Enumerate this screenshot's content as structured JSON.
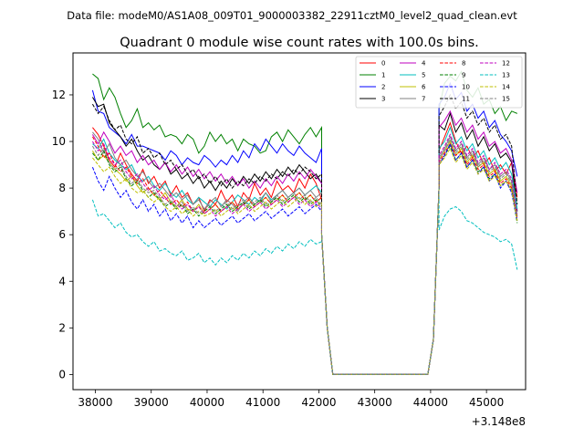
{
  "suptitle": "Data file: modeM0/AS1A08_009T01_9000003382_22911cztM0_level2_quad_clean.evt",
  "chart_data": {
    "type": "line",
    "title": "Quadrant 0 module wise count rates with 100.0s bins.",
    "xlabel": "",
    "ylabel": "",
    "offset_text": "+3.148e8",
    "xlim": [
      37600,
      45700
    ],
    "ylim": [
      -0.65,
      13.8
    ],
    "xticks": [
      38000,
      39000,
      40000,
      41000,
      42000,
      43000,
      44000,
      45000
    ],
    "xtick_labels": [
      "38000",
      "39000",
      "40000",
      "41000",
      "42000",
      "43000",
      "44000",
      "45000"
    ],
    "yticks": [
      0,
      2,
      4,
      6,
      8,
      10,
      12
    ],
    "ytick_labels": [
      "0",
      "2",
      "4",
      "6",
      "8",
      "10",
      "12"
    ],
    "legend_position": "upper right",
    "x_segments": {
      "seg1": {
        "start": 37950,
        "step": 100,
        "count": 42
      },
      "gap": {
        "x": [
          42050,
          42150,
          42250,
          42350,
          42450,
          42550,
          42650,
          42750,
          42850,
          42950,
          43050,
          43150,
          43250,
          43350,
          43450,
          43550,
          43650,
          43750,
          43850,
          43950,
          44050,
          44150
        ],
        "y": [
          6,
          2,
          0,
          0,
          0,
          0,
          0,
          0,
          0,
          0,
          0,
          0,
          0,
          0,
          0,
          0,
          0,
          0,
          0,
          0,
          1.5,
          8
        ]
      },
      "seg2": {
        "start": 44150,
        "step": 100,
        "count": 15
      }
    },
    "series": [
      {
        "name": "0",
        "color": "#ff0000",
        "dash": "solid",
        "seg1": [
          10.6,
          10.3,
          9.8,
          9.2,
          8.9,
          9.5,
          9.0,
          8.6,
          8.3,
          8.8,
          8.2,
          8.5,
          8.0,
          8.3,
          7.7,
          8.1,
          7.6,
          7.8,
          7.3,
          7.6,
          7.0,
          7.5,
          7.3,
          7.9,
          7.4,
          7.7,
          7.2,
          7.8,
          7.5,
          8.2,
          7.7,
          8.0,
          7.6,
          8.3,
          7.9,
          8.1,
          7.8,
          8.4,
          8.0,
          8.6,
          8.2,
          7.5
        ],
        "seg2": [
          9.6,
          10.2,
          10.8,
          10.0,
          9.5,
          9.8,
          9.3,
          9.6,
          9.0,
          9.3,
          8.7,
          9.0,
          8.6,
          9.1,
          7.6
        ]
      },
      {
        "name": "1",
        "color": "#008000",
        "dash": "solid",
        "seg1": [
          12.9,
          12.7,
          11.8,
          12.3,
          11.9,
          11.2,
          10.6,
          10.9,
          11.4,
          10.6,
          10.8,
          10.5,
          10.7,
          10.2,
          10.3,
          10.2,
          9.9,
          10.3,
          10.1,
          9.5,
          9.8,
          10.4,
          10.0,
          10.3,
          9.9,
          10.1,
          9.6,
          10.1,
          9.9,
          9.8,
          9.5,
          9.6,
          10.2,
          10.4,
          10.0,
          10.5,
          10.2,
          9.9,
          10.3,
          10.6,
          10.2,
          10.6
        ],
        "seg2": [
          11.4,
          12.5,
          12.8,
          12.6,
          13.0,
          12.2,
          11.9,
          12.3,
          11.6,
          11.8,
          11.2,
          11.5,
          10.9,
          11.3,
          11.2
        ]
      },
      {
        "name": "2",
        "color": "#0000ff",
        "dash": "solid",
        "seg1": [
          12.2,
          11.3,
          11.2,
          10.6,
          10.4,
          10.2,
          9.9,
          10.3,
          9.8,
          9.8,
          9.7,
          9.6,
          9.5,
          9.2,
          9.6,
          9.4,
          9.0,
          9.3,
          9.1,
          9.0,
          9.4,
          9.2,
          8.9,
          9.2,
          9.0,
          9.4,
          9.1,
          9.6,
          9.3,
          9.9,
          9.6,
          10.1,
          9.8,
          9.5,
          9.9,
          9.6,
          9.4,
          9.8,
          9.5,
          9.3,
          9.1,
          9.7
        ],
        "seg2": [
          11.6,
          11.9,
          12.5,
          11.8,
          12.1,
          11.3,
          11.6,
          11.0,
          11.3,
          10.6,
          10.9,
          10.3,
          10.0,
          9.6,
          8.5
        ]
      },
      {
        "name": "3",
        "color": "#000000",
        "dash": "solid",
        "seg1": [
          11.9,
          11.5,
          11.6,
          10.8,
          10.5,
          10.2,
          9.8,
          10.1,
          9.6,
          9.2,
          9.4,
          9.0,
          8.8,
          9.1,
          8.6,
          8.8,
          8.4,
          8.6,
          8.2,
          8.5,
          8.0,
          8.3,
          7.9,
          8.3,
          8.0,
          8.4,
          8.1,
          8.5,
          8.2,
          8.6,
          8.3,
          8.7,
          8.4,
          8.8,
          8.5,
          8.9,
          8.6,
          9.0,
          8.7,
          8.4,
          8.6,
          8.2
        ],
        "seg2": [
          10.7,
          10.5,
          11.2,
          10.4,
          10.8,
          10.1,
          10.5,
          9.8,
          10.2,
          9.6,
          9.9,
          9.3,
          9.5,
          9.1,
          7.0
        ]
      },
      {
        "name": "4",
        "color": "#bf00bf",
        "dash": "solid",
        "seg1": [
          10.3,
          9.9,
          10.4,
          10.0,
          9.5,
          9.8,
          9.4,
          9.6,
          9.1,
          9.4,
          9.0,
          9.2,
          8.8,
          9.1,
          8.7,
          9.0,
          8.6,
          8.9,
          8.5,
          8.8,
          8.4,
          8.7,
          8.3,
          8.6,
          8.2,
          8.5,
          8.1,
          8.4,
          8.0,
          8.3,
          8.0,
          8.4,
          8.1,
          8.5,
          8.2,
          8.6,
          8.3,
          8.7,
          8.4,
          8.8,
          8.5,
          8.2
        ],
        "seg2": [
          10.6,
          10.9,
          11.3,
          10.7,
          11.0,
          10.4,
          10.7,
          10.1,
          10.4,
          9.8,
          10.0,
          9.5,
          9.7,
          9.2,
          7.8
        ]
      },
      {
        "name": "5",
        "color": "#00bfbf",
        "dash": "solid",
        "seg1": [
          9.9,
          9.7,
          10.1,
          9.5,
          9.2,
          9.0,
          8.8,
          9.0,
          8.5,
          8.3,
          8.5,
          8.1,
          7.9,
          8.2,
          7.8,
          7.6,
          7.9,
          7.5,
          7.3,
          7.6,
          7.4,
          7.2,
          7.5,
          7.3,
          7.1,
          7.4,
          7.7,
          7.5,
          7.3,
          7.6,
          7.4,
          7.8,
          7.5,
          7.7,
          7.9,
          7.6,
          7.8,
          8.0,
          7.7,
          7.9,
          8.1,
          7.8
        ],
        "seg2": [
          9.7,
          10.0,
          10.6,
          9.9,
          10.2,
          9.6,
          9.9,
          9.3,
          9.6,
          9.0,
          9.3,
          8.8,
          9.1,
          8.6,
          7.1
        ]
      },
      {
        "name": "6",
        "color": "#bfbf00",
        "dash": "solid",
        "seg1": [
          9.6,
          9.2,
          9.4,
          9.1,
          8.8,
          8.6,
          8.3,
          8.5,
          8.1,
          7.8,
          8.0,
          7.7,
          7.5,
          7.8,
          7.4,
          7.2,
          7.5,
          7.1,
          7.0,
          7.3,
          6.9,
          7.1,
          7.3,
          7.0,
          7.2,
          7.4,
          7.1,
          7.3,
          7.5,
          7.2,
          7.4,
          7.6,
          7.3,
          7.5,
          7.7,
          7.4,
          7.6,
          7.8,
          7.5,
          7.7,
          7.4,
          7.6
        ],
        "seg2": [
          9.2,
          9.6,
          10.0,
          9.4,
          9.7,
          9.1,
          9.4,
          8.9,
          9.1,
          8.6,
          8.8,
          8.3,
          8.5,
          8.1,
          6.6
        ]
      },
      {
        "name": "7",
        "color": "#808080",
        "dash": "solid",
        "seg1": [
          10.4,
          10.1,
          9.5,
          9.9,
          9.3,
          9.0,
          9.2,
          8.8,
          8.5,
          8.7,
          8.3,
          8.0,
          8.2,
          7.9,
          7.6,
          7.8,
          7.5,
          7.7,
          7.3,
          7.5,
          7.1,
          7.4,
          7.6,
          7.2,
          7.5,
          7.3,
          7.0,
          7.4,
          7.6,
          7.3,
          7.5,
          7.8,
          7.4,
          7.7,
          7.9,
          7.6,
          7.8,
          8.0,
          7.7,
          7.9,
          7.6,
          7.8
        ],
        "seg2": [
          9.3,
          9.7,
          10.2,
          9.6,
          9.9,
          9.3,
          9.6,
          9.0,
          9.3,
          8.8,
          9.0,
          8.5,
          8.7,
          8.3,
          6.8
        ]
      },
      {
        "name": "8",
        "color": "#ff0000",
        "dash": "dashed",
        "seg1": [
          10.2,
          9.8,
          9.3,
          9.5,
          9.0,
          8.7,
          8.9,
          8.5,
          8.2,
          8.4,
          8.0,
          7.7,
          7.9,
          7.6,
          7.3,
          7.5,
          7.2,
          7.4,
          7.0,
          7.2,
          6.9,
          7.1,
          7.3,
          7.0,
          7.2,
          7.4,
          7.1,
          7.3,
          7.5,
          7.2,
          7.4,
          7.6,
          7.3,
          7.5,
          7.7,
          7.4,
          7.6,
          7.8,
          7.5,
          7.7,
          7.4,
          7.6
        ],
        "seg2": [
          9.1,
          9.5,
          9.9,
          9.4,
          9.6,
          9.0,
          9.3,
          8.8,
          9.0,
          8.5,
          8.7,
          8.2,
          8.4,
          8.0,
          6.7
        ]
      },
      {
        "name": "9",
        "color": "#008000",
        "dash": "dashed",
        "seg1": [
          9.5,
          9.2,
          9.6,
          9.0,
          8.7,
          8.9,
          8.4,
          8.1,
          8.3,
          7.9,
          7.6,
          7.8,
          7.5,
          7.2,
          7.4,
          7.1,
          7.3,
          6.9,
          7.1,
          6.8,
          7.0,
          7.2,
          6.9,
          7.1,
          7.3,
          7.0,
          7.2,
          7.4,
          7.1,
          7.3,
          7.5,
          7.2,
          7.4,
          7.6,
          7.3,
          7.5,
          7.7,
          7.4,
          7.6,
          7.3,
          7.5,
          7.2
        ],
        "seg2": [
          9.0,
          9.4,
          9.8,
          9.2,
          9.5,
          8.9,
          9.2,
          8.7,
          8.9,
          8.4,
          8.6,
          8.1,
          8.3,
          7.9,
          6.5
        ]
      },
      {
        "name": "10",
        "color": "#0000ff",
        "dash": "dashed",
        "seg1": [
          8.9,
          8.3,
          7.9,
          8.5,
          8.0,
          7.6,
          7.9,
          7.4,
          7.1,
          7.5,
          7.0,
          7.3,
          6.8,
          7.1,
          6.6,
          6.9,
          6.5,
          6.8,
          6.3,
          6.6,
          6.3,
          6.5,
          6.7,
          6.4,
          6.6,
          6.8,
          6.5,
          6.7,
          6.9,
          6.6,
          6.8,
          7.0,
          6.7,
          6.9,
          7.1,
          6.8,
          7.0,
          7.2,
          6.9,
          7.1,
          7.3,
          7.0
        ],
        "seg2": [
          9.0,
          9.4,
          9.9,
          9.2,
          9.5,
          8.9,
          9.2,
          8.6,
          8.9,
          8.3,
          8.6,
          8.0,
          8.3,
          7.8,
          6.6
        ]
      },
      {
        "name": "11",
        "color": "#000000",
        "dash": "dashed",
        "seg1": [
          11.6,
          11.2,
          11.5,
          10.9,
          10.5,
          10.7,
          10.1,
          9.9,
          10.2,
          9.5,
          9.7,
          9.3,
          9.5,
          9.0,
          9.2,
          8.8,
          9.0,
          8.6,
          8.8,
          8.4,
          8.6,
          8.2,
          8.5,
          8.1,
          8.4,
          8.0,
          8.3,
          8.1,
          8.4,
          8.2,
          8.5,
          8.3,
          8.6,
          8.4,
          8.7,
          8.5,
          8.8,
          8.6,
          8.9,
          8.7,
          8.4,
          8.6
        ],
        "seg2": [
          11.1,
          11.5,
          12.0,
          11.4,
          11.7,
          11.0,
          11.3,
          10.7,
          11.0,
          10.4,
          10.7,
          10.1,
          10.3,
          9.8,
          7.3
        ]
      },
      {
        "name": "12",
        "color": "#bf00bf",
        "dash": "dashed",
        "seg1": [
          10.0,
          9.6,
          9.9,
          9.3,
          9.0,
          9.2,
          8.7,
          8.4,
          8.6,
          8.2,
          7.9,
          8.1,
          7.7,
          7.5,
          7.7,
          7.3,
          7.1,
          7.3,
          7.0,
          7.2,
          6.9,
          7.1,
          6.8,
          7.0,
          7.2,
          6.9,
          7.1,
          7.3,
          7.0,
          7.2,
          7.4,
          7.1,
          7.3,
          7.5,
          7.2,
          7.4,
          7.6,
          7.3,
          7.5,
          7.2,
          7.4,
          7.1
        ],
        "seg2": [
          9.4,
          9.8,
          10.3,
          9.7,
          10.0,
          9.4,
          9.7,
          9.1,
          9.4,
          8.8,
          9.1,
          8.6,
          8.8,
          8.4,
          6.9
        ]
      },
      {
        "name": "13",
        "color": "#00bfbf",
        "dash": "dashed",
        "seg1": [
          7.5,
          6.8,
          6.9,
          6.6,
          6.3,
          6.5,
          6.1,
          5.9,
          6.0,
          5.7,
          5.5,
          5.7,
          5.3,
          5.4,
          5.2,
          5.1,
          5.3,
          4.9,
          5.0,
          5.2,
          4.8,
          5.0,
          4.7,
          5.0,
          4.8,
          5.1,
          4.9,
          5.2,
          5.0,
          5.3,
          5.1,
          5.4,
          5.2,
          5.5,
          5.3,
          5.6,
          5.4,
          5.7,
          5.5,
          5.8,
          5.6,
          5.7
        ],
        "seg2": [
          6.2,
          6.8,
          7.1,
          7.2,
          7.0,
          6.6,
          6.5,
          6.3,
          6.1,
          6.0,
          5.9,
          5.7,
          5.8,
          5.6,
          4.5
        ]
      },
      {
        "name": "14",
        "color": "#bfbf00",
        "dash": "dashed",
        "seg1": [
          9.3,
          9.0,
          8.7,
          8.9,
          8.5,
          8.2,
          8.4,
          8.0,
          7.8,
          7.9,
          7.6,
          7.4,
          7.6,
          7.2,
          7.0,
          7.2,
          6.9,
          7.1,
          6.8,
          7.0,
          6.8,
          6.9,
          7.1,
          6.8,
          7.0,
          7.2,
          6.9,
          7.1,
          7.3,
          7.0,
          7.2,
          7.4,
          7.1,
          7.3,
          7.5,
          7.2,
          7.4,
          7.6,
          7.3,
          7.5,
          7.2,
          7.4
        ],
        "seg2": [
          9.0,
          9.3,
          9.7,
          9.1,
          9.4,
          8.8,
          9.1,
          8.6,
          8.8,
          8.3,
          8.5,
          8.1,
          8.3,
          7.9,
          6.6
        ]
      },
      {
        "name": "15",
        "color": "#808080",
        "dash": "dashed",
        "seg1": [
          9.8,
          9.4,
          9.7,
          9.1,
          8.8,
          9.0,
          8.5,
          8.2,
          8.4,
          8.0,
          7.8,
          7.9,
          7.6,
          7.3,
          7.5,
          7.2,
          7.4,
          7.0,
          7.2,
          6.9,
          7.1,
          7.3,
          7.0,
          7.2,
          7.4,
          7.1,
          7.3,
          7.5,
          7.2,
          7.4,
          7.6,
          7.3,
          7.5,
          7.7,
          7.4,
          7.6,
          7.8,
          7.5,
          7.7,
          7.4,
          7.6,
          7.3
        ],
        "seg2": [
          9.2,
          9.6,
          10.1,
          9.5,
          9.8,
          9.2,
          9.5,
          8.9,
          9.2,
          8.7,
          8.9,
          8.4,
          8.6,
          8.2,
          6.8
        ]
      }
    ]
  }
}
